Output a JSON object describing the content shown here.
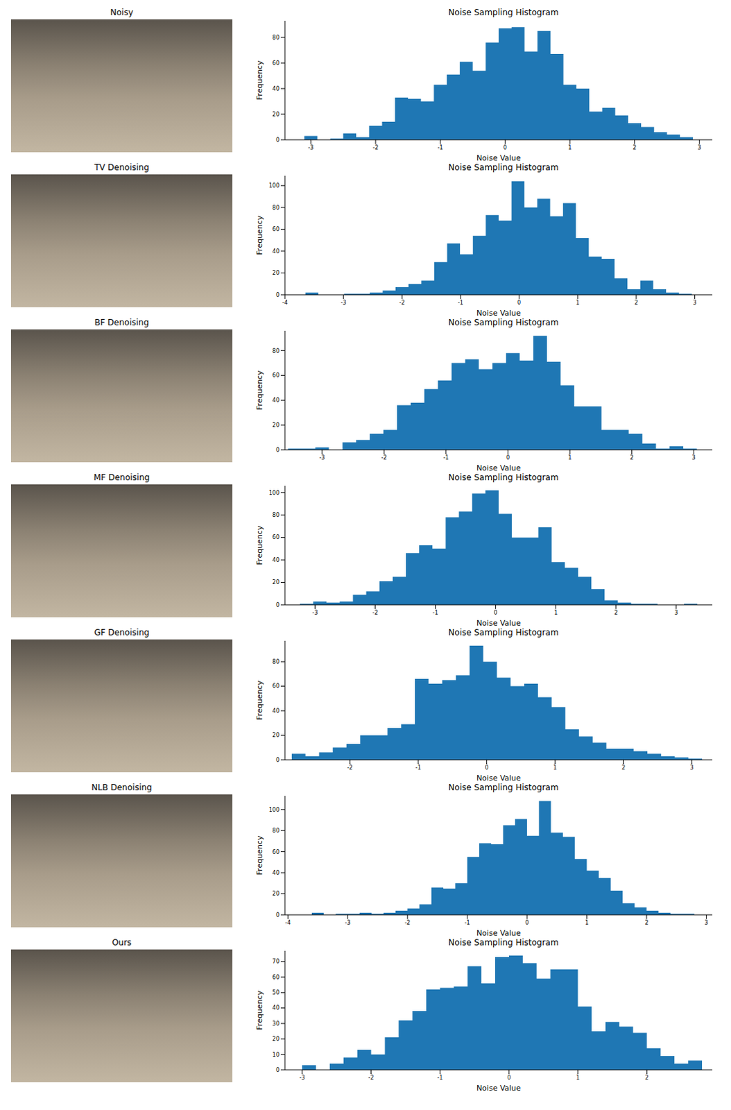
{
  "images": [
    "Noisy",
    "TV Denoising",
    "BF Denoising",
    "MF Denoising",
    "GF Denoising",
    "NLB Denoising",
    "Ours"
  ],
  "chart_data": [
    {
      "type": "histogram",
      "title": "Noise Sampling Histogram",
      "x_label": "Noise Value",
      "y_label": "Frequency",
      "color": "#1f77b4",
      "bins": [
        -3.1,
        -2.9,
        -2.7,
        -2.5,
        -2.3,
        -2.1,
        -1.9,
        -1.7,
        -1.5,
        -1.3,
        -1.1,
        -0.9,
        -0.7,
        -0.5,
        -0.3,
        -0.1,
        0.1,
        0.3,
        0.5,
        0.7,
        0.9,
        1.1,
        1.3,
        1.5,
        1.7,
        1.9,
        2.1,
        2.3,
        2.5,
        2.7,
        2.9
      ],
      "values": [
        3,
        0,
        1,
        5,
        2,
        11,
        14,
        33,
        32,
        30,
        43,
        51,
        61,
        54,
        76,
        87,
        88,
        69,
        85,
        67,
        43,
        40,
        22,
        25,
        19,
        13,
        10,
        6,
        4,
        2
      ],
      "xlim": [
        -3.4,
        3.2
      ],
      "ylim": [
        0,
        93
      ],
      "xticks": [
        -3,
        -2,
        -1,
        0,
        1,
        2,
        3
      ],
      "yticks": [
        0,
        20,
        40,
        60,
        80
      ]
    },
    {
      "type": "histogram",
      "title": "Noise Sampling Histogram",
      "x_label": "Noise Value",
      "y_label": "Frequency",
      "color": "#1f77b4",
      "bins": [
        -3.65,
        -3.43,
        -3.21,
        -2.99,
        -2.77,
        -2.55,
        -2.33,
        -2.11,
        -1.89,
        -1.67,
        -1.45,
        -1.23,
        -1.01,
        -0.79,
        -0.57,
        -0.35,
        -0.13,
        0.09,
        0.31,
        0.53,
        0.75,
        0.97,
        1.19,
        1.41,
        1.63,
        1.85,
        2.07,
        2.29,
        2.51,
        2.73,
        2.95
      ],
      "values": [
        2,
        0,
        0,
        1,
        1,
        2,
        4,
        7,
        10,
        13,
        30,
        47,
        37,
        54,
        73,
        68,
        104,
        80,
        88,
        72,
        84,
        52,
        35,
        33,
        15,
        5,
        13,
        5,
        2,
        1
      ],
      "xlim": [
        -4,
        3.3
      ],
      "ylim": [
        0,
        109
      ],
      "xticks": [
        -4,
        -3,
        -2,
        -1,
        0,
        1,
        2,
        3
      ],
      "yticks": [
        0,
        20,
        40,
        60,
        80,
        100
      ]
    },
    {
      "type": "histogram",
      "title": "Noise Sampling Histogram",
      "x_label": "Noise Value",
      "y_label": "Frequency",
      "color": "#1f77b4",
      "bins": [
        -3.55,
        -3.33,
        -3.11,
        -2.89,
        -2.67,
        -2.45,
        -2.23,
        -2.01,
        -1.79,
        -1.57,
        -1.35,
        -1.13,
        -0.91,
        -0.69,
        -0.47,
        -0.25,
        -0.03,
        0.19,
        0.41,
        0.63,
        0.85,
        1.07,
        1.29,
        1.51,
        1.73,
        1.95,
        2.17,
        2.39,
        2.61,
        2.83,
        3.05
      ],
      "values": [
        1,
        1,
        2,
        0,
        6,
        8,
        13,
        16,
        36,
        38,
        49,
        56,
        70,
        73,
        65,
        70,
        78,
        72,
        92,
        71,
        52,
        35,
        35,
        16,
        16,
        13,
        5,
        1,
        3,
        1
      ],
      "xlim": [
        -3.6,
        3.3
      ],
      "ylim": [
        0,
        96
      ],
      "xticks": [
        -3,
        -2,
        -1,
        0,
        1,
        2,
        3
      ],
      "yticks": [
        0,
        20,
        40,
        60,
        80
      ]
    },
    {
      "type": "histogram",
      "title": "Noise Sampling Histogram",
      "x_label": "Noise Value",
      "y_label": "Frequency",
      "color": "#1f77b4",
      "bins": [
        -3.25,
        -3.03,
        -2.81,
        -2.59,
        -2.37,
        -2.15,
        -1.93,
        -1.71,
        -1.49,
        -1.27,
        -1.05,
        -0.83,
        -0.61,
        -0.39,
        -0.17,
        0.05,
        0.27,
        0.49,
        0.71,
        0.93,
        1.15,
        1.37,
        1.59,
        1.81,
        2.03,
        2.25,
        2.47,
        2.69,
        2.91,
        3.13,
        3.35
      ],
      "values": [
        1,
        3,
        2,
        3,
        9,
        12,
        21,
        25,
        46,
        53,
        50,
        78,
        83,
        99,
        102,
        81,
        60,
        60,
        69,
        38,
        33,
        25,
        14,
        4,
        2,
        1,
        1,
        0,
        0,
        1
      ],
      "xlim": [
        -3.5,
        3.6
      ],
      "ylim": [
        0,
        106
      ],
      "xticks": [
        -3,
        -2,
        -1,
        0,
        1,
        2,
        3
      ],
      "yticks": [
        0,
        20,
        40,
        60,
        80,
        100
      ]
    },
    {
      "type": "histogram",
      "title": "Noise Sampling Histogram",
      "x_label": "Noise Value",
      "y_label": "Frequency",
      "color": "#1f77b4",
      "bins": [
        -2.85,
        -2.65,
        -2.45,
        -2.25,
        -2.05,
        -1.85,
        -1.65,
        -1.45,
        -1.25,
        -1.05,
        -0.85,
        -0.65,
        -0.45,
        -0.25,
        -0.05,
        0.15,
        0.35,
        0.55,
        0.75,
        0.95,
        1.15,
        1.35,
        1.55,
        1.75,
        1.95,
        2.15,
        2.35,
        2.55,
        2.75,
        2.95,
        3.15
      ],
      "values": [
        5,
        3,
        6,
        10,
        13,
        20,
        20,
        26,
        29,
        66,
        62,
        65,
        69,
        93,
        80,
        67,
        60,
        62,
        51,
        43,
        25,
        19,
        14,
        9,
        9,
        7,
        5,
        3,
        2,
        1
      ],
      "xlim": [
        -2.95,
        3.3
      ],
      "ylim": [
        0,
        97
      ],
      "xticks": [
        -2,
        -1,
        0,
        1,
        2,
        3
      ],
      "yticks": [
        0,
        20,
        40,
        60,
        80
      ]
    },
    {
      "type": "histogram",
      "title": "Noise Sampling Histogram",
      "x_label": "Noise Value",
      "y_label": "Frequency",
      "color": "#1f77b4",
      "bins": [
        -3.6,
        -3.4,
        -3.2,
        -3.0,
        -2.8,
        -2.6,
        -2.4,
        -2.2,
        -2.0,
        -1.8,
        -1.6,
        -1.4,
        -1.2,
        -1.0,
        -0.8,
        -0.6,
        -0.4,
        -0.2,
        0.0,
        0.2,
        0.4,
        0.6,
        0.8,
        1.0,
        1.2,
        1.4,
        1.6,
        1.8,
        2.0,
        2.2,
        2.4,
        2.6,
        2.8
      ],
      "values": [
        2,
        0,
        1,
        1,
        2,
        1,
        2,
        4,
        6,
        10,
        26,
        25,
        30,
        55,
        68,
        67,
        85,
        91,
        75,
        108,
        78,
        74,
        53,
        42,
        35,
        23,
        11,
        7,
        4,
        2,
        1,
        1
      ],
      "xlim": [
        -4.05,
        3.1
      ],
      "ylim": [
        0,
        113
      ],
      "xticks": [
        -4,
        -3,
        -2,
        -1,
        0,
        1,
        2,
        3
      ],
      "yticks": [
        0,
        20,
        40,
        60,
        80,
        100
      ]
    },
    {
      "type": "histogram",
      "title": "Noise Sampling Histogram",
      "x_label": "Noise Value",
      "y_label": "Frequency",
      "color": "#1f77b4",
      "bins": [
        -3.0,
        -2.8,
        -2.6,
        -2.4,
        -2.2,
        -2.0,
        -1.8,
        -1.6,
        -1.4,
        -1.2,
        -1.0,
        -0.8,
        -0.6,
        -0.4,
        -0.2,
        0.0,
        0.2,
        0.4,
        0.6,
        0.8,
        1.0,
        1.2,
        1.4,
        1.6,
        1.8,
        2.0,
        2.2,
        2.4,
        2.6,
        2.8
      ],
      "values": [
        3,
        0,
        4,
        8,
        13,
        10,
        21,
        32,
        38,
        52,
        53,
        54,
        67,
        56,
        73,
        74,
        69,
        59,
        65,
        65,
        41,
        25,
        31,
        28,
        24,
        14,
        9,
        4,
        6
      ],
      "xlim": [
        -3.25,
        2.95
      ],
      "ylim": [
        0,
        77
      ],
      "xticks": [
        -3,
        -2,
        -1,
        0,
        1,
        2
      ],
      "yticks": [
        0,
        10,
        20,
        30,
        40,
        50,
        60,
        70
      ]
    }
  ]
}
